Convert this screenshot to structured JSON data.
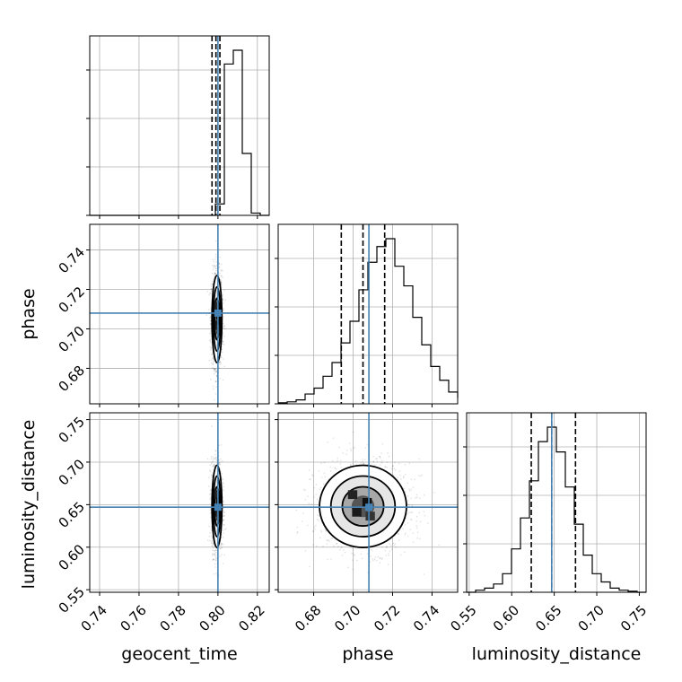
{
  "chart_data": {
    "type": "corner",
    "parameters": [
      "geocent_time",
      "phase",
      "luminosity_distance"
    ],
    "truths": [
      0.8,
      0.708,
      0.647
    ],
    "truth_color": "#4682b4",
    "grid": true,
    "ranges": {
      "geocent_time": [
        0.735,
        0.826
      ],
      "phase": [
        0.662,
        0.753
      ],
      "luminosity_distance": [
        0.547,
        0.758
      ]
    },
    "ticks": {
      "geocent_time": [
        "0.74",
        "0.76",
        "0.78",
        "0.80",
        "0.82"
      ],
      "phase": [
        "0.68",
        "0.70",
        "0.72",
        "0.74"
      ],
      "luminosity_distance": [
        "0.55",
        "0.60",
        "0.65",
        "0.70",
        "0.75"
      ]
    },
    "marginals": [
      {
        "parameter": "geocent_time",
        "quantiles": [
          0.797,
          0.799,
          0.801
        ],
        "histogram": {
          "start": 0.735,
          "binwidth": 0.00455,
          "counts": [
            0,
            0,
            0,
            0,
            0,
            0,
            0,
            0,
            0,
            0,
            0,
            0,
            0,
            0,
            0.05,
            0.66,
            0.72,
            0.27,
            0.01,
            0,
            0,
            0,
            0,
            0,
            0,
            0,
            0,
            0,
            0,
            0,
            0
          ]
        }
      },
      {
        "parameter": "phase",
        "quantiles": [
          0.694,
          0.705,
          0.716
        ],
        "histogram": {
          "start": 0.662,
          "binwidth": 0.00455,
          "counts": [
            0.005,
            0.01,
            0.02,
            0.05,
            0.08,
            0.14,
            0.21,
            0.31,
            0.42,
            0.58,
            0.72,
            0.8,
            0.84,
            0.7,
            0.6,
            0.44,
            0.3,
            0.19,
            0.12,
            0.06,
            0.03,
            0.015,
            0.005,
            0.003
          ]
        }
      },
      {
        "parameter": "luminosity_distance",
        "quantiles": [
          0.623,
          0.647,
          0.675
        ],
        "histogram": {
          "start": 0.547,
          "binwidth": 0.01055,
          "counts": [
            0,
            0.01,
            0.02,
            0.04,
            0.09,
            0.21,
            0.36,
            0.54,
            0.73,
            0.8,
            0.68,
            0.51,
            0.33,
            0.18,
            0.09,
            0.05,
            0.02,
            0.01,
            0.005,
            0
          ]
        }
      }
    ],
    "joint_2d": [
      {
        "x": "geocent_time",
        "y": "phase",
        "mean": [
          0.7995,
          0.705
        ],
        "sd": [
          0.0012,
          0.0105
        ]
      },
      {
        "x": "geocent_time",
        "y": "luminosity_distance",
        "mean": [
          0.7995,
          0.648
        ],
        "sd": [
          0.0012,
          0.023
        ]
      },
      {
        "x": "phase",
        "y": "luminosity_distance",
        "mean": [
          0.705,
          0.648
        ],
        "sd": [
          0.0105,
          0.023
        ]
      }
    ]
  }
}
